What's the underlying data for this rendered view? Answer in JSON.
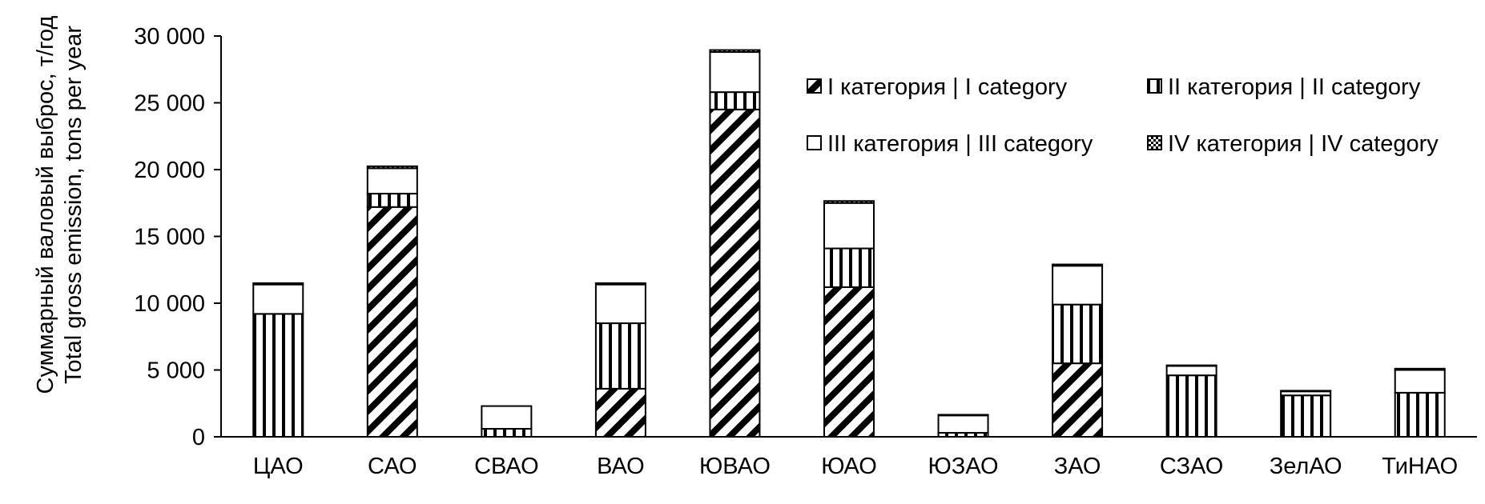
{
  "chart_data": {
    "type": "bar",
    "stacked": true,
    "title": "",
    "ylabel_ru": "Суммарный валовый выброс, т/год",
    "ylabel_en": "Total gross emission, tons per year",
    "xlabel": "",
    "ylim": [
      0,
      30000
    ],
    "yticks": [
      0,
      5000,
      10000,
      15000,
      20000,
      25000,
      30000
    ],
    "ytick_labels": [
      "0",
      "5 000",
      "10 000",
      "15 000",
      "20 000",
      "25 000",
      "30 000"
    ],
    "grid": false,
    "legend_position": "top-right",
    "categories": [
      "ЦАО",
      "САО",
      "СВАО",
      "ВАО",
      "ЮВАО",
      "ЮАО",
      "ЮЗАО",
      "ЗАО",
      "СЗАО",
      "ЗелАО",
      "ТиНАО"
    ],
    "series": [
      {
        "name": "I категория | I category",
        "pattern": "diagonal",
        "values": [
          0,
          17200,
          0,
          3600,
          24500,
          11200,
          0,
          5500,
          0,
          0,
          0
        ]
      },
      {
        "name": "II категория | II category",
        "pattern": "vertical",
        "values": [
          9200,
          1000,
          600,
          4900,
          1300,
          2900,
          300,
          4400,
          4600,
          3100,
          3300
        ]
      },
      {
        "name": "III категория | III category",
        "pattern": "empty",
        "values": [
          2200,
          1900,
          1700,
          2900,
          3000,
          3400,
          1300,
          2900,
          700,
          300,
          1700
        ]
      },
      {
        "name": "IV категория | IV category",
        "pattern": "checker",
        "values": [
          100,
          150,
          0,
          100,
          150,
          150,
          50,
          100,
          50,
          50,
          100
        ]
      }
    ]
  }
}
